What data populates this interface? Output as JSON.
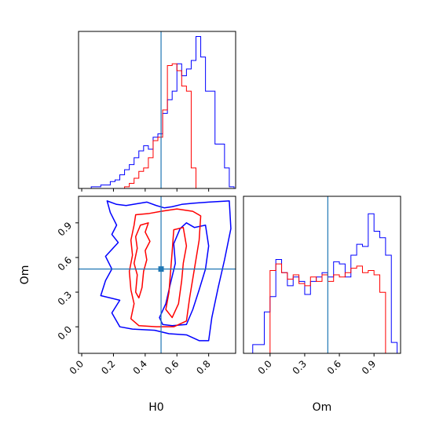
{
  "chart_data": {
    "type": "corner",
    "colors": {
      "series_a": "#0000ff",
      "series_b": "#ff0000",
      "truth": "#1f77b4"
    },
    "parameters": [
      "H0",
      "Om"
    ],
    "truth": {
      "H0": 0.5,
      "Om": 0.5
    },
    "axes": {
      "H0": {
        "range": [
          -0.02,
          0.97
        ],
        "ticks": [
          0.0,
          0.2,
          0.4,
          0.6,
          0.8
        ],
        "tick_labels": [
          "0.0",
          "0.2",
          "0.4",
          "0.6",
          "0.8"
        ],
        "xlabel": "H0"
      },
      "Om": {
        "range": [
          -0.23,
          1.13
        ],
        "ticks": [
          0.0,
          0.3,
          0.6,
          0.9
        ],
        "tick_labels": [
          "0.0",
          "0.3",
          "0.6",
          "0.9"
        ],
        "xlabel": "Om",
        "ylabel": "Om"
      }
    },
    "hist_H0": {
      "bin_edges": [
        0.06,
        0.09,
        0.12,
        0.15,
        0.18,
        0.21,
        0.24,
        0.27,
        0.3,
        0.33,
        0.36,
        0.39,
        0.42,
        0.45,
        0.48,
        0.51,
        0.54,
        0.57,
        0.6,
        0.63,
        0.66,
        0.69,
        0.72,
        0.75,
        0.78,
        0.81,
        0.84,
        0.87,
        0.9,
        0.93,
        0.96
      ],
      "series": [
        {
          "color": "blue",
          "values": [
            0.01,
            0.01,
            0.02,
            0.02,
            0.04,
            0.05,
            0.08,
            0.11,
            0.14,
            0.18,
            0.22,
            0.25,
            0.23,
            0.3,
            0.32,
            0.44,
            0.52,
            0.57,
            0.73,
            0.66,
            0.7,
            0.75,
            0.89,
            0.77,
            0.57,
            0.57,
            0.26,
            0.26,
            0.12,
            0.01
          ]
        },
        {
          "color": "red",
          "values": [
            0.0,
            0.0,
            0.0,
            0.0,
            0.0,
            0.0,
            0.0,
            0.01,
            0.03,
            0.06,
            0.1,
            0.12,
            0.18,
            0.28,
            0.3,
            0.46,
            0.72,
            0.73,
            0.69,
            0.6,
            0.57,
            0.12,
            0.0,
            0.0,
            0.0,
            0.0,
            0.0,
            0.0,
            0.0,
            0.0
          ]
        }
      ]
    },
    "hist_Om": {
      "bin_edges": [
        -0.15,
        -0.1,
        -0.05,
        0.0,
        0.05,
        0.1,
        0.15,
        0.2,
        0.25,
        0.3,
        0.35,
        0.4,
        0.45,
        0.5,
        0.55,
        0.6,
        0.65,
        0.7,
        0.75,
        0.8,
        0.85,
        0.9,
        0.95,
        1.0,
        1.05,
        1.1
      ],
      "series": [
        {
          "color": "blue",
          "values": [
            0.04,
            0.04,
            0.19,
            0.26,
            0.43,
            0.37,
            0.31,
            0.35,
            0.33,
            0.27,
            0.33,
            0.35,
            0.37,
            0.35,
            0.42,
            0.41,
            0.35,
            0.45,
            0.5,
            0.49,
            0.64,
            0.56,
            0.53,
            0.45,
            0.05
          ]
        },
        {
          "color": "red",
          "values": [
            0.0,
            0.0,
            0.0,
            0.38,
            0.41,
            0.37,
            0.34,
            0.36,
            0.32,
            0.31,
            0.35,
            0.33,
            0.36,
            0.33,
            0.36,
            0.35,
            0.37,
            0.39,
            0.4,
            0.37,
            0.38,
            0.36,
            0.28,
            0.0,
            0.0
          ]
        }
      ]
    },
    "contours_H0_Om": [
      {
        "color": "blue",
        "level": "outer",
        "points": [
          [
            0.16,
            1.09
          ],
          [
            0.22,
            1.06
          ],
          [
            0.28,
            1.05
          ],
          [
            0.41,
            1.08
          ],
          [
            0.47,
            1.05
          ],
          [
            0.52,
            1.03
          ],
          [
            0.57,
            1.04
          ],
          [
            0.63,
            1.06
          ],
          [
            0.7,
            1.07
          ],
          [
            0.8,
            1.08
          ],
          [
            0.93,
            1.09
          ],
          [
            0.94,
            0.85
          ],
          [
            0.9,
            0.58
          ],
          [
            0.86,
            0.34
          ],
          [
            0.82,
            0.08
          ],
          [
            0.8,
            -0.12
          ],
          [
            0.74,
            -0.12
          ],
          [
            0.66,
            -0.07
          ],
          [
            0.55,
            -0.06
          ],
          [
            0.46,
            -0.03
          ],
          [
            0.32,
            -0.02
          ],
          [
            0.24,
            0.0
          ],
          [
            0.19,
            0.12
          ],
          [
            0.24,
            0.23
          ],
          [
            0.12,
            0.27
          ],
          [
            0.15,
            0.4
          ],
          [
            0.19,
            0.5
          ],
          [
            0.15,
            0.61
          ],
          [
            0.23,
            0.73
          ],
          [
            0.19,
            0.8
          ],
          [
            0.22,
            0.88
          ],
          [
            0.18,
            0.99
          ]
        ]
      },
      {
        "color": "blue",
        "level": "inner",
        "points": [
          [
            0.66,
            0.9
          ],
          [
            0.71,
            0.86
          ],
          [
            0.78,
            0.88
          ],
          [
            0.8,
            0.7
          ],
          [
            0.78,
            0.5
          ],
          [
            0.74,
            0.32
          ],
          [
            0.7,
            0.15
          ],
          [
            0.66,
            0.02
          ],
          [
            0.57,
            0.01
          ],
          [
            0.51,
            0.02
          ],
          [
            0.49,
            0.08
          ],
          [
            0.53,
            0.2
          ],
          [
            0.56,
            0.38
          ],
          [
            0.59,
            0.55
          ],
          [
            0.58,
            0.72
          ],
          [
            0.62,
            0.85
          ]
        ]
      },
      {
        "color": "red",
        "level": "outer",
        "points": [
          [
            0.34,
            0.97
          ],
          [
            0.42,
            0.98
          ],
          [
            0.5,
            1.0
          ],
          [
            0.6,
            1.02
          ],
          [
            0.7,
            1.0
          ],
          [
            0.75,
            0.96
          ],
          [
            0.74,
            0.75
          ],
          [
            0.71,
            0.5
          ],
          [
            0.68,
            0.25
          ],
          [
            0.66,
            0.05
          ],
          [
            0.58,
            0.0
          ],
          [
            0.47,
            0.0
          ],
          [
            0.36,
            0.01
          ],
          [
            0.31,
            0.07
          ],
          [
            0.33,
            0.2
          ],
          [
            0.31,
            0.32
          ],
          [
            0.3,
            0.48
          ],
          [
            0.32,
            0.62
          ],
          [
            0.31,
            0.75
          ],
          [
            0.33,
            0.88
          ]
        ]
      },
      {
        "color": "red",
        "level": "inner",
        "points": [
          [
            0.37,
            0.88
          ],
          [
            0.42,
            0.9
          ],
          [
            0.4,
            0.82
          ],
          [
            0.43,
            0.74
          ],
          [
            0.4,
            0.66
          ],
          [
            0.41,
            0.58
          ],
          [
            0.39,
            0.48
          ],
          [
            0.38,
            0.34
          ],
          [
            0.36,
            0.25
          ],
          [
            0.34,
            0.3
          ],
          [
            0.35,
            0.45
          ],
          [
            0.33,
            0.55
          ],
          [
            0.35,
            0.68
          ],
          [
            0.34,
            0.78
          ]
        ]
      },
      {
        "color": "red",
        "level": "inner",
        "points": [
          [
            0.58,
            0.84
          ],
          [
            0.64,
            0.86
          ],
          [
            0.66,
            0.7
          ],
          [
            0.64,
            0.55
          ],
          [
            0.63,
            0.4
          ],
          [
            0.61,
            0.2
          ],
          [
            0.57,
            0.08
          ],
          [
            0.53,
            0.15
          ],
          [
            0.55,
            0.3
          ],
          [
            0.56,
            0.48
          ],
          [
            0.57,
            0.65
          ]
        ]
      }
    ]
  }
}
